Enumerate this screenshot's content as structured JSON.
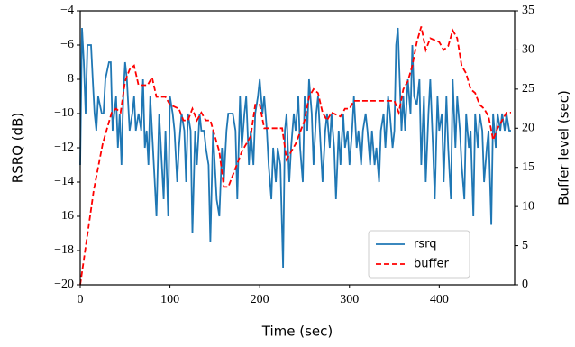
{
  "chart_data": {
    "type": "line",
    "x_label": "Time (sec)",
    "y_label": "RSRQ (dB)",
    "y2_label": "Buffer level (sec)",
    "xlim": [
      0,
      484
    ],
    "xticks": [
      0,
      100,
      200,
      300,
      400
    ],
    "ylim": [
      -20,
      -4
    ],
    "yticks": [
      {
        "value": -20,
        "label": "−20"
      },
      {
        "value": -18,
        "label": "−18"
      },
      {
        "value": -16,
        "label": "−16"
      },
      {
        "value": -14,
        "label": "−14"
      },
      {
        "value": -12,
        "label": "−12"
      },
      {
        "value": -10,
        "label": "−10"
      },
      {
        "value": -8,
        "label": "−8"
      },
      {
        "value": -6,
        "label": "−6"
      },
      {
        "value": -4,
        "label": "−4"
      }
    ],
    "y2lim": [
      0,
      35
    ],
    "y2ticks": [
      0,
      5,
      10,
      15,
      20,
      25,
      30,
      35
    ],
    "legend": "lower right",
    "series": [
      {
        "name": "rsrq",
        "color": "#1f77b4",
        "dash": "solid",
        "x": [
          0,
          2,
          4,
          6,
          8,
          12,
          14,
          16,
          18,
          20,
          24,
          26,
          28,
          32,
          34,
          36,
          38,
          40,
          42,
          44,
          46,
          48,
          50,
          52,
          55,
          58,
          60,
          62,
          65,
          68,
          70,
          72,
          74,
          76,
          78,
          80,
          83,
          85,
          88,
          90,
          93,
          95,
          98,
          100,
          103,
          105,
          108,
          110,
          113,
          116,
          118,
          120,
          123,
          125,
          128,
          130,
          133,
          135,
          138,
          140,
          143,
          145,
          148,
          150,
          152,
          155,
          158,
          160,
          163,
          165,
          168,
          170,
          173,
          175,
          178,
          180,
          183,
          185,
          188,
          190,
          193,
          195,
          198,
          200,
          203,
          205,
          208,
          210,
          213,
          215,
          218,
          220,
          223,
          226,
          228,
          230,
          233,
          235,
          238,
          240,
          243,
          245,
          248,
          250,
          253,
          255,
          258,
          260,
          263,
          265,
          268,
          270,
          273,
          275,
          278,
          280,
          283,
          285,
          288,
          290,
          293,
          295,
          298,
          300,
          303,
          305,
          308,
          310,
          313,
          315,
          318,
          320,
          323,
          325,
          328,
          330,
          333,
          335,
          338,
          340,
          343,
          345,
          348,
          350,
          352,
          354,
          356,
          358,
          360,
          362,
          365,
          368,
          370,
          372,
          375,
          378,
          380,
          383,
          385,
          388,
          390,
          393,
          395,
          398,
          400,
          403,
          405,
          408,
          410,
          413,
          415,
          418,
          420,
          423,
          425,
          428,
          430,
          433,
          435,
          438,
          440,
          443,
          445,
          448,
          450,
          453,
          455,
          458,
          460,
          463,
          465,
          468,
          470,
          473,
          475,
          478,
          480
        ],
        "values": [
          -13,
          -5,
          -7,
          -10,
          -6,
          -6,
          -8,
          -10,
          -11,
          -9,
          -10,
          -10,
          -8,
          -7,
          -7,
          -11,
          -10,
          -9,
          -12,
          -10,
          -13,
          -9,
          -7,
          -8,
          -11,
          -10,
          -9,
          -11,
          -10,
          -11,
          -8,
          -12,
          -11,
          -13,
          -9,
          -11,
          -14,
          -16,
          -10,
          -12,
          -15,
          -11,
          -16,
          -9,
          -10,
          -11,
          -14,
          -12,
          -10,
          -11,
          -14,
          -10,
          -11,
          -17,
          -11,
          -13,
          -10,
          -11,
          -11,
          -12,
          -13,
          -17.5,
          -11,
          -13,
          -15,
          -16,
          -12,
          -14,
          -11,
          -10,
          -10,
          -10,
          -11,
          -15,
          -9,
          -12,
          -10,
          -9,
          -13,
          -11,
          -13,
          -10,
          -9,
          -8,
          -10,
          -9,
          -11,
          -13,
          -15,
          -12,
          -14,
          -12,
          -13,
          -19,
          -11,
          -10,
          -14,
          -12,
          -10,
          -11,
          -9,
          -12,
          -14,
          -9,
          -11,
          -8,
          -10,
          -13,
          -10,
          -9,
          -12,
          -14,
          -11,
          -10,
          -12,
          -10,
          -12,
          -15,
          -11,
          -13,
          -10,
          -12,
          -11,
          -13,
          -11,
          -9,
          -12,
          -11,
          -13,
          -11,
          -10,
          -11,
          -13,
          -11,
          -13,
          -12,
          -14,
          -11,
          -10,
          -12,
          -9,
          -10,
          -12,
          -11,
          -6,
          -5,
          -8,
          -11,
          -9,
          -11,
          -8,
          -10,
          -6,
          -9,
          -9.5,
          -8,
          -13,
          -9,
          -14,
          -10,
          -8,
          -12,
          -15,
          -9,
          -11,
          -10,
          -14,
          -9,
          -12,
          -15,
          -8,
          -12,
          -9,
          -11,
          -13,
          -15,
          -10,
          -12,
          -11,
          -16,
          -10,
          -12,
          -10,
          -11,
          -14,
          -12,
          -11,
          -16.5,
          -10,
          -12,
          -10,
          -11,
          -10,
          -11,
          -10,
          -11,
          -11
        ]
      },
      {
        "name": "buffer",
        "color": "#ff0000",
        "dash": "dashed",
        "axis": "y2",
        "x": [
          0,
          5,
          10,
          15,
          20,
          25,
          30,
          35,
          40,
          45,
          50,
          55,
          60,
          65,
          75,
          80,
          85,
          95,
          100,
          110,
          115,
          120,
          125,
          130,
          135,
          140,
          145,
          150,
          155,
          160,
          165,
          170,
          180,
          190,
          195,
          200,
          205,
          225,
          230,
          240,
          250,
          255,
          260,
          265,
          270,
          275,
          280,
          290,
          295,
          300,
          305,
          350,
          355,
          360,
          365,
          370,
          375,
          380,
          385,
          390,
          400,
          405,
          410,
          415,
          420,
          425,
          430,
          435,
          440,
          445,
          450,
          455,
          460,
          465,
          470,
          475,
          480
        ],
        "values": [
          0,
          4,
          8,
          12,
          15,
          18,
          20,
          22,
          22.5,
          22,
          26,
          27.5,
          28,
          25.5,
          25.5,
          26.5,
          24,
          24,
          23,
          22.5,
          21,
          21,
          22.5,
          21,
          22,
          21,
          21,
          19,
          17,
          12.5,
          12.5,
          14,
          17,
          19,
          23,
          23,
          20,
          20,
          16,
          18,
          21,
          24,
          25,
          24.5,
          22,
          21,
          22,
          21.5,
          22.5,
          22.5,
          23.5,
          23.5,
          22,
          25,
          26,
          28,
          31,
          33,
          30,
          31.5,
          31,
          30,
          30.5,
          32.5,
          31.5,
          28,
          27,
          25,
          24.5,
          23,
          22.5,
          21.5,
          18.5,
          20,
          21,
          22,
          22
        ]
      }
    ]
  }
}
